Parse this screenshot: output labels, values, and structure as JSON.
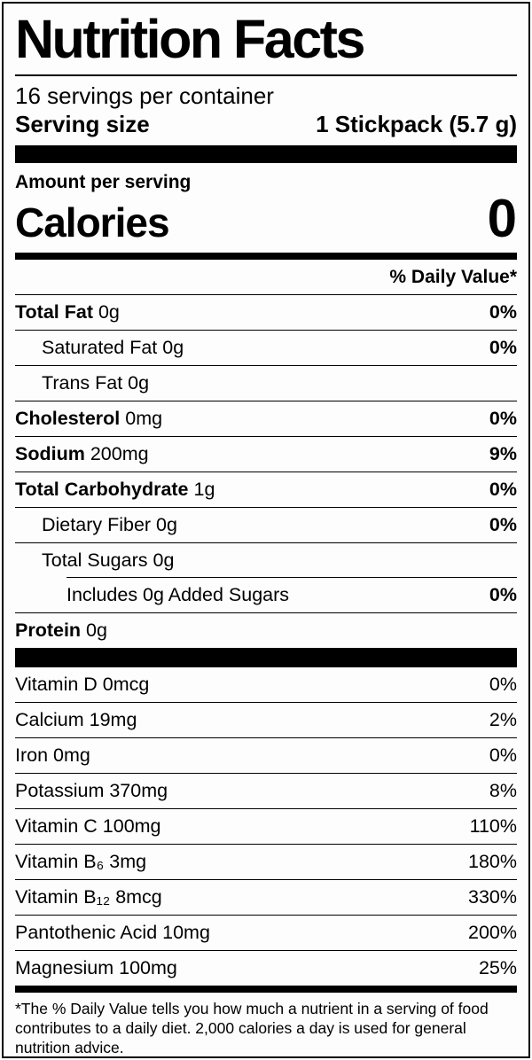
{
  "label": {
    "title": "Nutrition Facts",
    "servings_per_container": "16 servings per container",
    "serving_size_label": "Serving size",
    "serving_size_value": "1 Stickpack (5.7 g)",
    "amount_per_serving": "Amount per serving",
    "calories_label": "Calories",
    "calories_value": "0",
    "daily_value_header": "% Daily Value*",
    "footnote": "*The % Daily Value tells you how much a nutrient in a serving of food contributes to a daily diet. 2,000 calories a day is used for general nutrition advice."
  },
  "nutrients": [
    {
      "bold": "Total Fat",
      "rest": "0g",
      "pct": "0%",
      "indent": 0
    },
    {
      "bold": "",
      "rest": "Saturated Fat 0g",
      "pct": "0%",
      "indent": 1
    },
    {
      "bold": "",
      "rest": "Trans Fat 0g",
      "pct": "",
      "indent": 1
    },
    {
      "bold": "Cholesterol",
      "rest": "0mg",
      "pct": "0%",
      "indent": 0
    },
    {
      "bold": "Sodium",
      "rest": "200mg",
      "pct": "9%",
      "indent": 0
    },
    {
      "bold": "Total Carbohydrate",
      "rest": "1g",
      "pct": "0%",
      "indent": 0
    },
    {
      "bold": "",
      "rest": "Dietary Fiber 0g",
      "pct": "0%",
      "indent": 1
    },
    {
      "bold": "",
      "rest": "Total Sugars 0g",
      "pct": "",
      "indent": 1
    },
    {
      "bold": "",
      "rest": "Includes 0g Added Sugars",
      "pct": "0%",
      "indent": 2
    },
    {
      "bold": "Protein",
      "rest": "0g",
      "pct": "",
      "indent": 0
    }
  ],
  "vitamins": [
    {
      "name": "Vitamin D 0mcg",
      "pct": "0%"
    },
    {
      "name": "Calcium 19mg",
      "pct": "2%"
    },
    {
      "name": "Iron 0mg",
      "pct": "0%"
    },
    {
      "name": "Potassium 370mg",
      "pct": "8%"
    },
    {
      "name": "Vitamin C 100mg",
      "pct": "110%"
    },
    {
      "name": "Vitamin B₆ 3mg",
      "pct": "180%"
    },
    {
      "name": "Vitamin B₁₂ 8mcg",
      "pct": "330%"
    },
    {
      "name": "Pantothenic Acid 10mg",
      "pct": "200%"
    },
    {
      "name": "Magnesium 100mg",
      "pct": "25%"
    }
  ]
}
